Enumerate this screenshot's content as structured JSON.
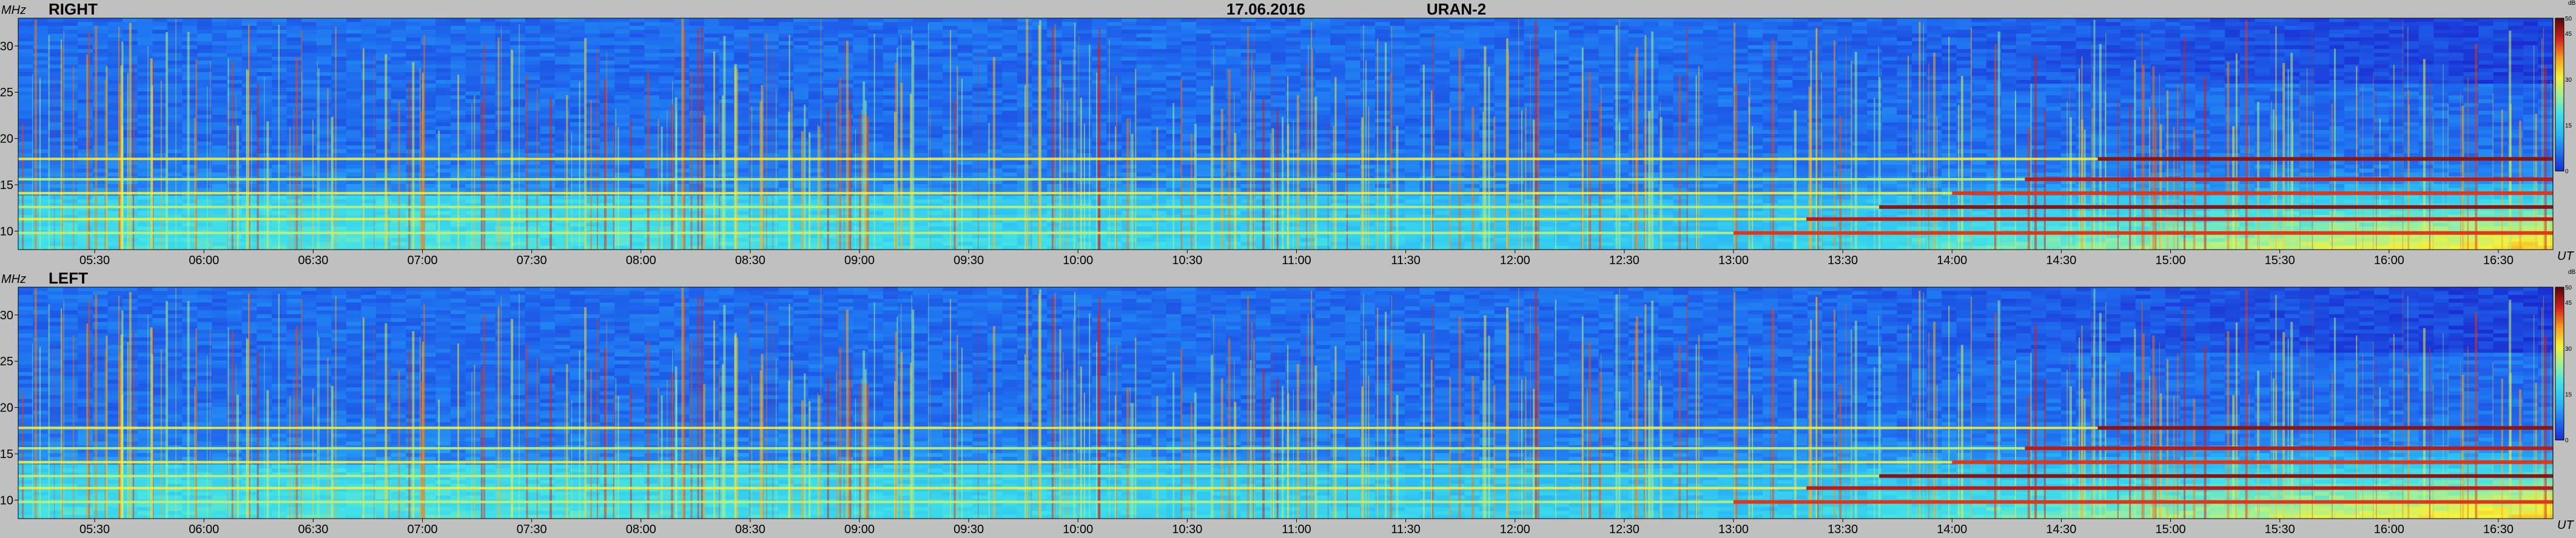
{
  "header": {
    "date": "17.06.2016",
    "instrument": "URAN-2"
  },
  "colors": {
    "background": "#c0c0c0",
    "colormap": [
      "#1a2ad0",
      "#1f6ff0",
      "#2ab8f6",
      "#40e0e8",
      "#9ef09a",
      "#f4f23e",
      "#f59a20",
      "#d4201c",
      "#5a0a0a"
    ]
  },
  "chart_data": [
    {
      "type": "heatmap",
      "title": "RIGHT",
      "ylabel": "MHz",
      "xlabel": "UT",
      "x_ticks": [
        "05:30",
        "06:00",
        "06:30",
        "07:00",
        "07:30",
        "08:00",
        "08:30",
        "09:00",
        "09:30",
        "10:00",
        "10:30",
        "11:00",
        "11:30",
        "12:00",
        "12:30",
        "13:00",
        "13:30",
        "14:00",
        "14:30",
        "15:00",
        "15:30",
        "16:00",
        "16:30"
      ],
      "xlim": [
        "05:09",
        "16:45"
      ],
      "y_ticks": [
        10,
        15,
        20,
        25,
        30
      ],
      "ylim": [
        8,
        33
      ],
      "colorbar": {
        "label": "dB",
        "ticks": [
          0,
          15,
          30,
          45,
          50
        ],
        "range": [
          0,
          50
        ]
      },
      "features": {
        "interference_bands_MHz": [
          9.8,
          11.3,
          12.6,
          14.1,
          15.6,
          17.8
        ],
        "daytime_enhancement_start": "13:00"
      }
    },
    {
      "type": "heatmap",
      "title": "LEFT",
      "ylabel": "MHz",
      "xlabel": "UT",
      "x_ticks": [
        "05:30",
        "06:00",
        "06:30",
        "07:00",
        "07:30",
        "08:00",
        "08:30",
        "09:00",
        "09:30",
        "10:00",
        "10:30",
        "11:00",
        "11:30",
        "12:00",
        "12:30",
        "13:00",
        "13:30",
        "14:00",
        "14:30",
        "15:00",
        "15:30",
        "16:00",
        "16:30"
      ],
      "xlim": [
        "05:09",
        "16:45"
      ],
      "y_ticks": [
        10,
        15,
        20,
        25,
        30
      ],
      "ylim": [
        8,
        33
      ],
      "colorbar": {
        "label": "dB",
        "ticks": [
          0,
          15,
          30,
          45,
          50
        ],
        "range": [
          0,
          50
        ]
      },
      "features": {
        "interference_bands_MHz": [
          9.8,
          11.3,
          12.6,
          14.1,
          15.6,
          17.8
        ],
        "daytime_enhancement_start": "13:00"
      }
    }
  ]
}
